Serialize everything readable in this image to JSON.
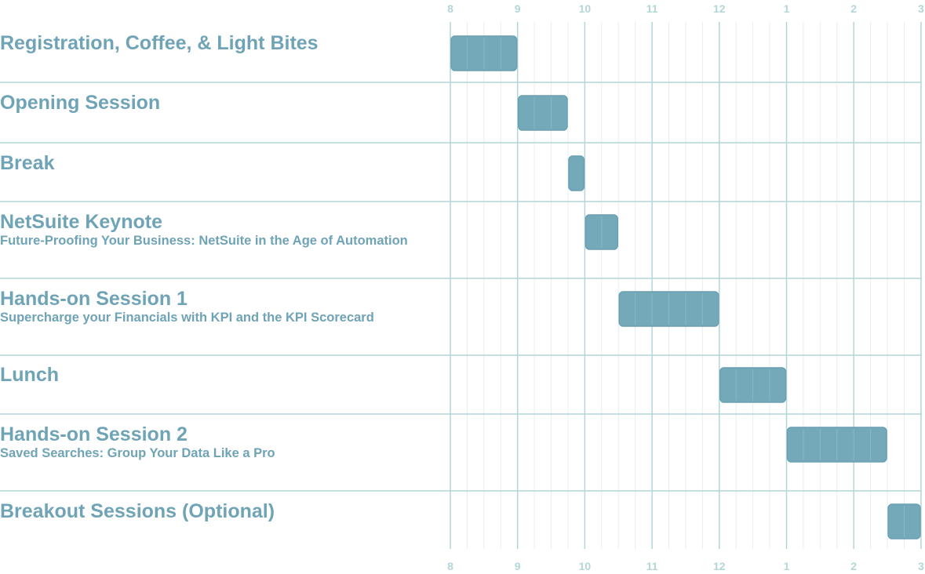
{
  "chart_data": {
    "type": "bar",
    "orientation": "horizontal-gantt",
    "title": "",
    "x_ticks": [
      "8",
      "9",
      "10",
      "11",
      "12",
      "1",
      "2",
      "3"
    ],
    "x_range_hours": [
      8,
      15
    ],
    "minor_gridlines_per_hour": 4,
    "sessions": [
      {
        "title": "Registration, Coffee, & Light Bites",
        "subtitle": "",
        "start": "8:00",
        "end": "9:00"
      },
      {
        "title": "Opening Session",
        "subtitle": "",
        "start": "9:00",
        "end": "9:45"
      },
      {
        "title": "Break",
        "subtitle": "",
        "start": "9:45",
        "end": "10:00"
      },
      {
        "title": "NetSuite Keynote",
        "subtitle": "Future-Proofing Your Business: NetSuite in the Age of Automation",
        "start": "10:00",
        "end": "10:30"
      },
      {
        "title": "Hands-on Session 1",
        "subtitle": "Supercharge your Financials with KPI and the KPI Scorecard",
        "start": "10:30",
        "end": "12:00"
      },
      {
        "title": "Lunch",
        "subtitle": "",
        "start": "12:00",
        "end": "1:00"
      },
      {
        "title": "Hands-on Session 2",
        "subtitle": "Saved Searches: Group Your Data Like a Pro",
        "start": "1:00",
        "end": "2:30"
      },
      {
        "title": "Breakout Sessions (Optional)",
        "subtitle": "",
        "start": "2:30",
        "end": "3:00"
      }
    ],
    "colors": {
      "bar_fill": "#74a9ba",
      "bar_stroke": "#6a9fb1",
      "bar_inner_lines": "#8ab8c7",
      "label_text": "#6fa3b6",
      "tick_text": "#b3d6d9",
      "major_grid": "#b3d6d9",
      "minor_grid": "#e3efef",
      "row_divider": "#b3d6d9"
    }
  }
}
